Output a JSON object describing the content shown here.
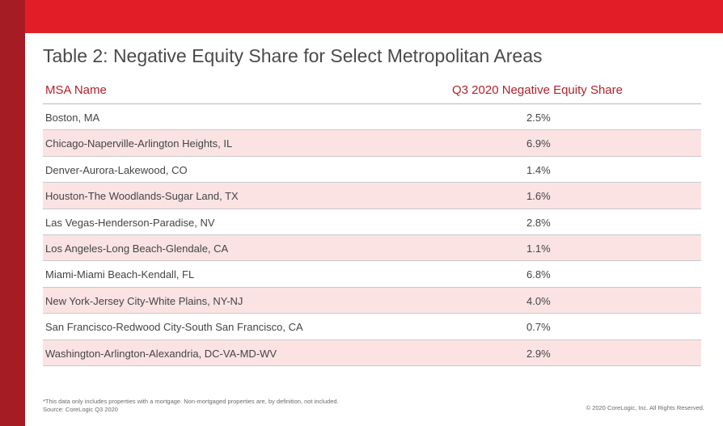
{
  "title": "Table 2: Negative Equity Share for Select Metropolitan Areas",
  "columns": {
    "name": "MSA Name",
    "value": "Q3 2020  Negative Equity Share"
  },
  "rows": [
    {
      "name": "Boston, MA",
      "value": "2.5%"
    },
    {
      "name": "Chicago-Naperville-Arlington Heights, IL",
      "value": "6.9%"
    },
    {
      "name": "Denver-Aurora-Lakewood, CO",
      "value": "1.4%"
    },
    {
      "name": "Houston-The Woodlands-Sugar Land, TX",
      "value": "1.6%"
    },
    {
      "name": "Las Vegas-Henderson-Paradise, NV",
      "value": "2.8%"
    },
    {
      "name": "Los Angeles-Long Beach-Glendale, CA",
      "value": "1.1%"
    },
    {
      "name": "Miami-Miami Beach-Kendall, FL",
      "value": "6.8%"
    },
    {
      "name": "New York-Jersey City-White Plains, NY-NJ",
      "value": "4.0%"
    },
    {
      "name": "San Francisco-Redwood City-South San Francisco, CA",
      "value": "0.7%"
    },
    {
      "name": "Washington-Arlington-Alexandria, DC-VA-MD-WV",
      "value": "2.9%"
    }
  ],
  "footnote": {
    "line1": "*This data only includes properties with a mortgage. Non-mortgaged properties are, by definition, not included.",
    "line2": "Source: CoreLogic Q3 2020"
  },
  "copyright": "© 2020 CoreLogic, Inc. All Rights Reserved.",
  "colors": {
    "brand_red": "#e21d27",
    "dark_red": "#a51c24",
    "header_text": "#b5202a",
    "row_shade": "#fbe3e4"
  }
}
